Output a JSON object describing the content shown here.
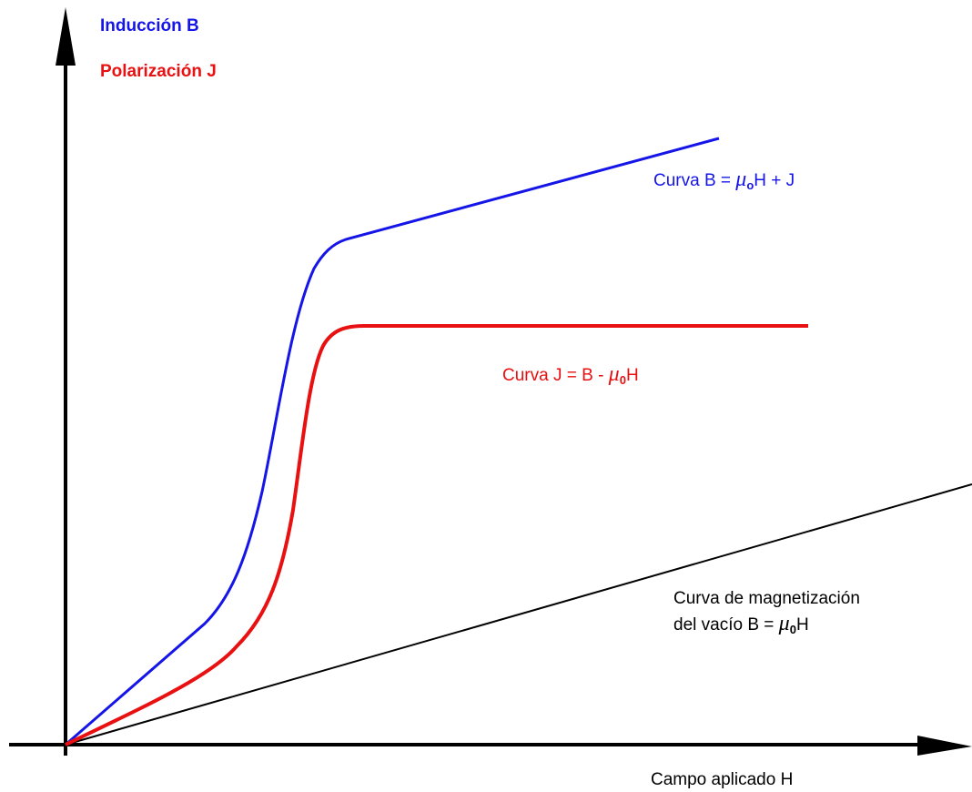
{
  "labels": {
    "induction": "Inducción B",
    "polarization": "Polarización J",
    "curve_b": {
      "prefix": "Curva B = ",
      "mu": "μ",
      "sub": "o",
      "suffix": "H + J"
    },
    "curve_j": {
      "prefix": "Curva J = B - ",
      "mu": "μ",
      "sub": "0",
      "suffix": "H"
    },
    "vacuum": {
      "line1": "Curva de magnetización",
      "prefix": "del vacío  B = ",
      "mu": "μ",
      "sub": "0",
      "suffix": "H"
    },
    "x_axis": "Campo aplicado H"
  }
}
